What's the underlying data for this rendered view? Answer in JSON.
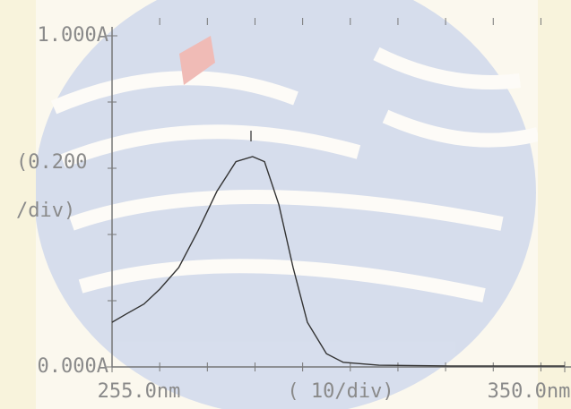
{
  "chart_data": {
    "type": "line",
    "x": [
      255,
      258,
      261.7,
      265,
      269,
      273,
      277,
      281,
      284.5,
      287,
      290,
      293,
      296,
      300,
      303.5,
      311,
      326,
      350
    ],
    "series": [
      {
        "color": "#333333",
        "values": [
          0.135,
          0.16,
          0.19,
          0.235,
          0.3,
          0.41,
          0.53,
          0.62,
          0.635,
          0.62,
          0.49,
          0.3,
          0.135,
          0.04,
          0.014,
          0.005,
          0.003,
          0.003
        ]
      }
    ],
    "xlim": [
      255,
      350
    ],
    "xticks": [
      {
        "value": 255,
        "label": "255.0nm"
      },
      {
        "value": 350,
        "label": "350.0nm"
      }
    ],
    "x_minor_ticks": [
      265,
      275,
      285,
      295,
      305,
      315,
      325,
      335,
      345
    ],
    "xlabel": "( 10/div)",
    "ylim": [
      0,
      1
    ],
    "yticks": [
      {
        "value": 0,
        "label": "0.000A"
      },
      {
        "value": 1,
        "label": "1.000A"
      }
    ],
    "y_minor_ticks": [
      0.2,
      0.4,
      0.6,
      0.8
    ],
    "ylabel": [
      "(0.200",
      "/div)"
    ]
  }
}
